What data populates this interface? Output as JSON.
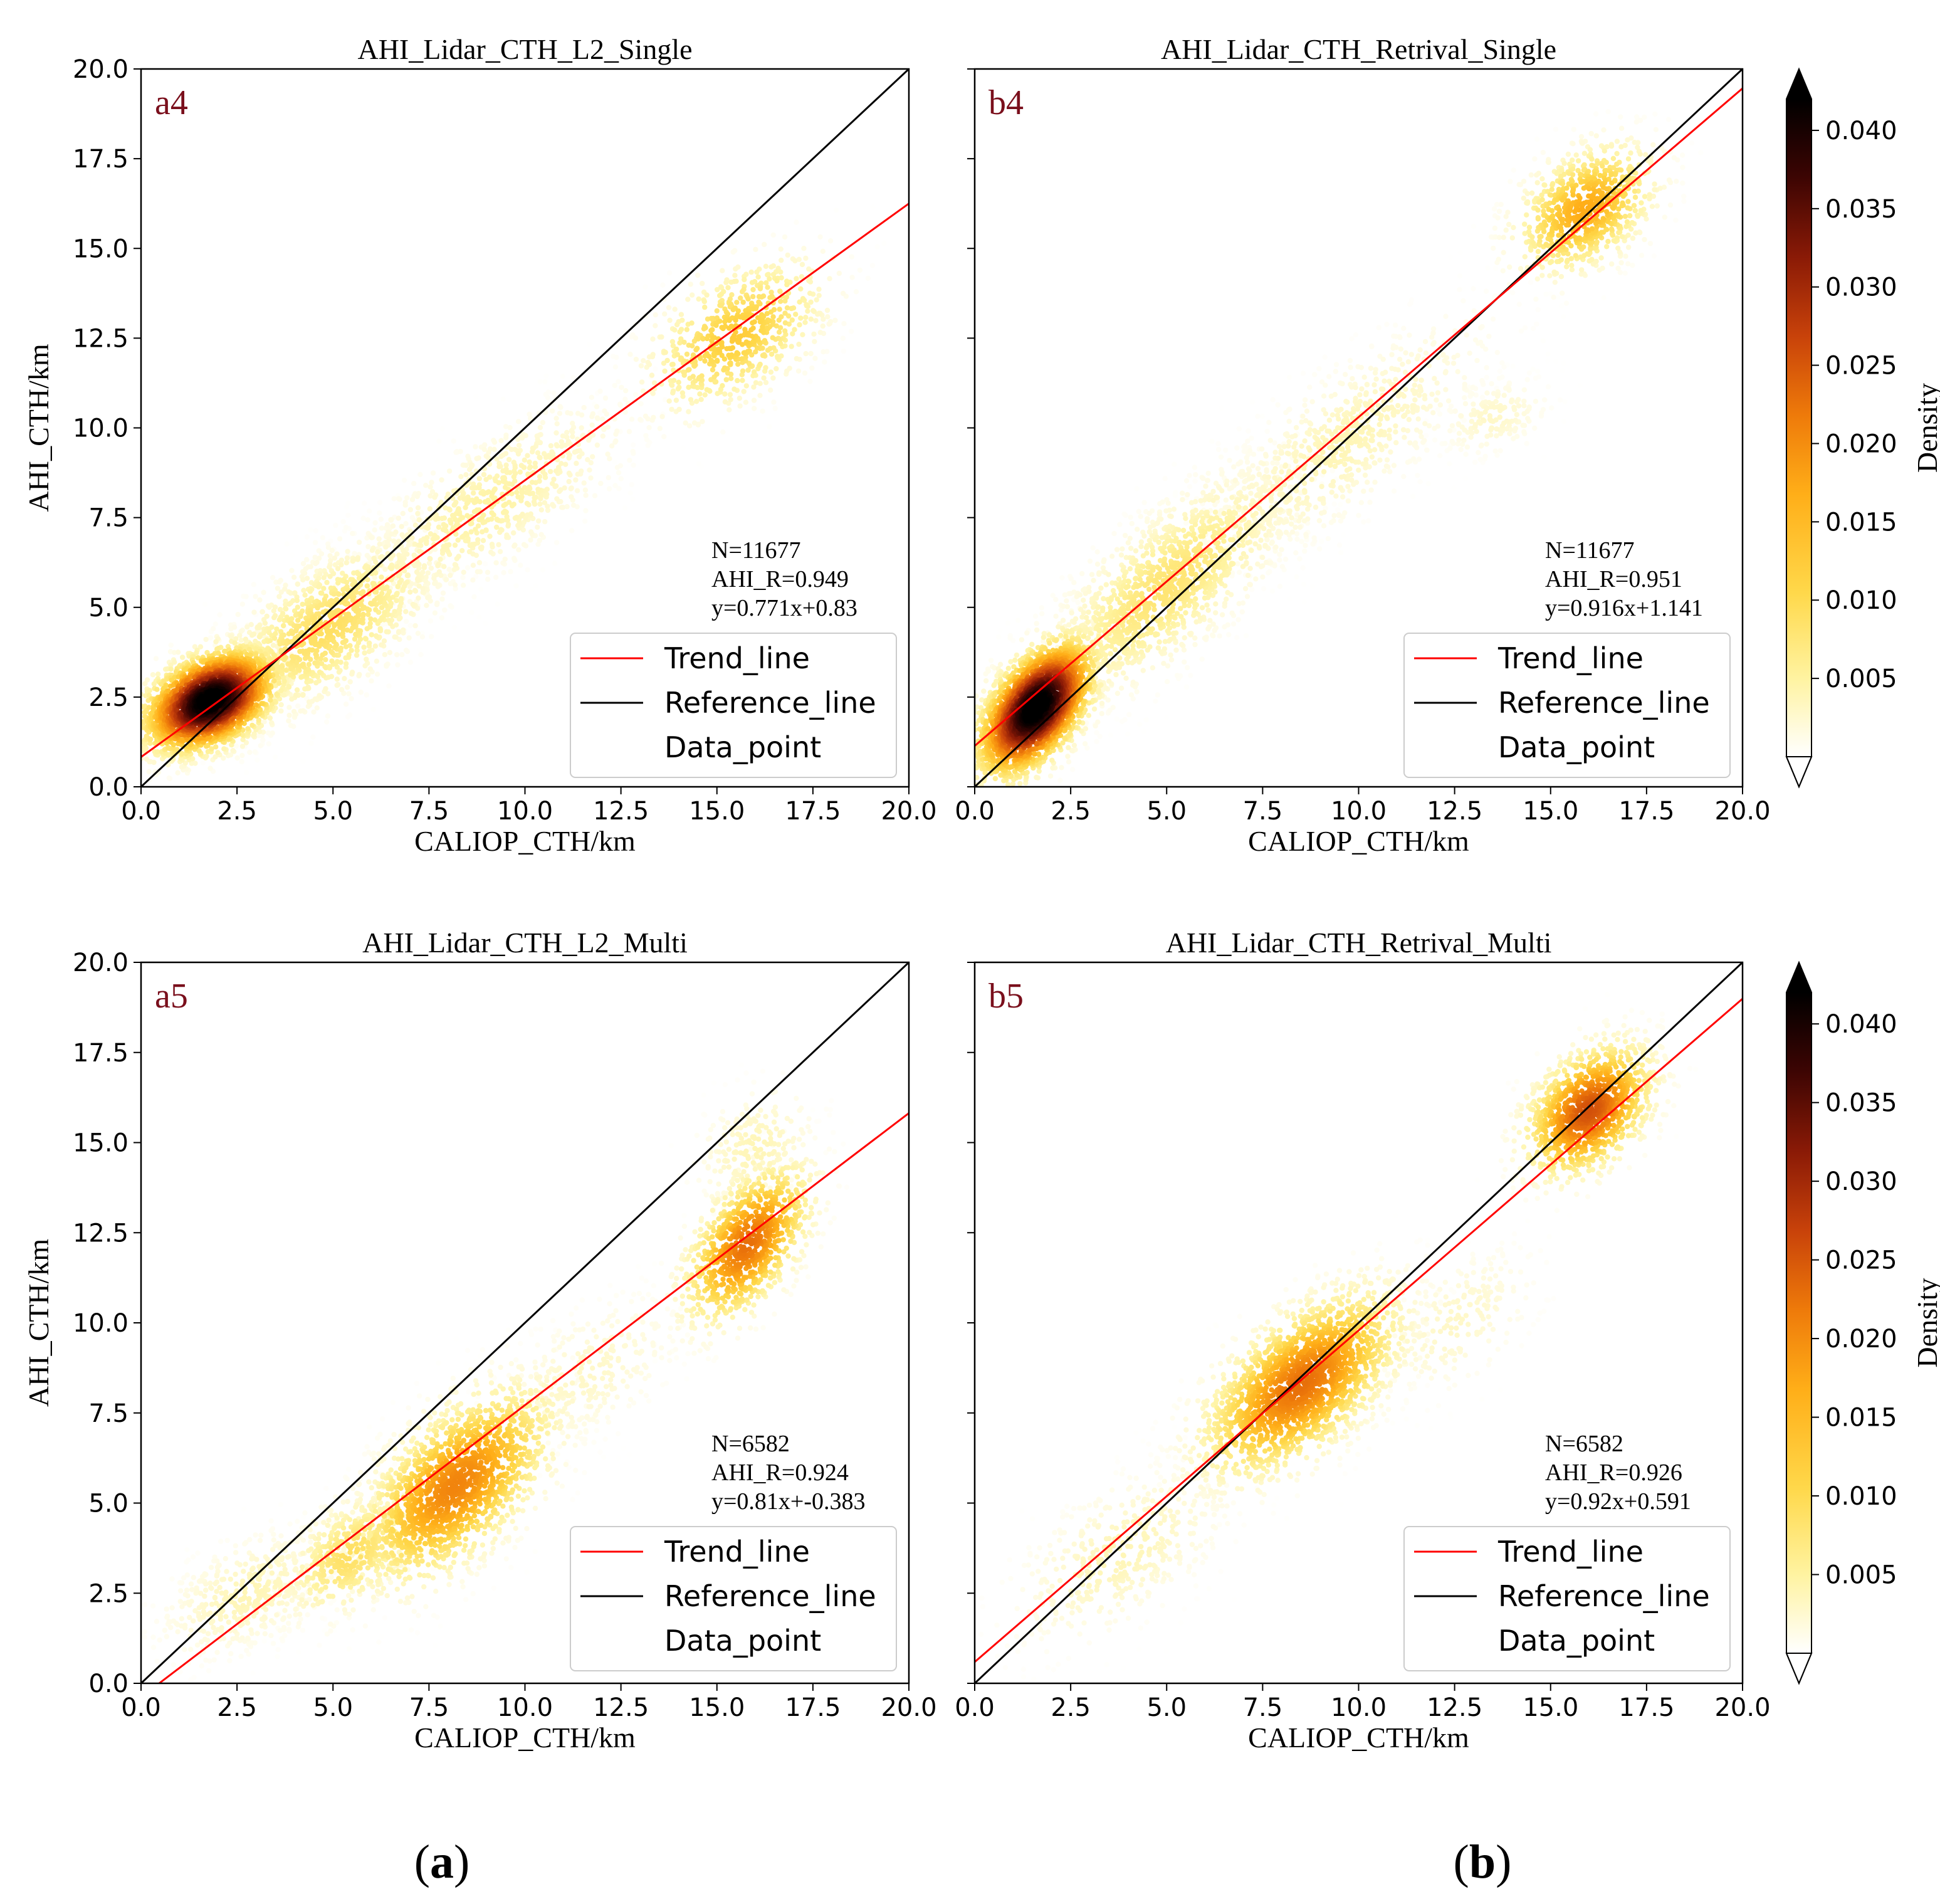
{
  "colors": {
    "trend": "#ff0000",
    "reference": "#000000",
    "panel_label": "#7a0f1c",
    "colormap": [
      "#ffffff",
      "#fff3a0",
      "#ffd84a",
      "#ffae18",
      "#ee7a0a",
      "#c8420a",
      "#8a1a06",
      "#3d0503",
      "#000000"
    ]
  },
  "chart_data": [
    {
      "id": "a4",
      "type": "scatter",
      "title": "AHI_Lidar_CTH_L2_Single",
      "xlabel": "CALIOP_CTH/km",
      "ylabel": "AHI_CTH/km",
      "xlim": [
        0,
        20
      ],
      "ylim": [
        0,
        20
      ],
      "xticks": [
        "0.0",
        "2.5",
        "5.0",
        "7.5",
        "10.0",
        "12.5",
        "15.0",
        "17.5",
        "20.0"
      ],
      "yticks": [
        "0.0",
        "2.5",
        "5.0",
        "7.5",
        "10.0",
        "12.5",
        "15.0",
        "17.5",
        "20.0"
      ],
      "show_yticks": true,
      "panel_label": "a4",
      "stats": [
        "N=11677",
        "AHI_R=0.949",
        "y=0.771x+0.83"
      ],
      "trend": {
        "slope": 0.771,
        "intercept": 0.83
      },
      "reference": {
        "slope": 1,
        "intercept": 0
      },
      "legend": [
        "Trend_line",
        "Reference_line",
        "Data_point"
      ],
      "clusters": [
        {
          "x": 1.8,
          "y": 2.4,
          "sx": 0.9,
          "sy": 0.75,
          "rho": 0.4,
          "n": 2600,
          "peak": 0.045
        },
        {
          "x": 4.8,
          "y": 4.4,
          "sx": 1.6,
          "sy": 1.4,
          "rho": 0.65,
          "n": 1300,
          "peak": 0.009
        },
        {
          "x": 9.0,
          "y": 7.8,
          "sx": 2.0,
          "sy": 1.6,
          "rho": 0.75,
          "n": 900,
          "peak": 0.005
        },
        {
          "x": 15.5,
          "y": 12.6,
          "sx": 1.3,
          "sy": 1.2,
          "rho": 0.5,
          "n": 700,
          "peak": 0.012
        }
      ]
    },
    {
      "id": "b4",
      "type": "scatter",
      "title": "AHI_Lidar_CTH_Retrival_Single",
      "xlabel": "CALIOP_CTH/km",
      "ylabel": "",
      "xlim": [
        0,
        20
      ],
      "ylim": [
        0,
        20
      ],
      "xticks": [
        "0.0",
        "2.5",
        "5.0",
        "7.5",
        "10.0",
        "12.5",
        "15.0",
        "17.5",
        "20.0"
      ],
      "yticks": [
        "0.0",
        "2.5",
        "5.0",
        "7.5",
        "10.0",
        "12.5",
        "15.0",
        "17.5",
        "20.0"
      ],
      "show_yticks": false,
      "panel_label": "b4",
      "stats": [
        "N=11677",
        "AHI_R=0.951",
        "y=0.916x+1.141"
      ],
      "trend": {
        "slope": 0.916,
        "intercept": 1.141
      },
      "reference": {
        "slope": 1,
        "intercept": 0
      },
      "legend": [
        "Trend_line",
        "Reference_line",
        "Data_point"
      ],
      "clusters": [
        {
          "x": 1.6,
          "y": 2.2,
          "sx": 0.8,
          "sy": 1.0,
          "rho": 0.55,
          "n": 2400,
          "peak": 0.045
        },
        {
          "x": 5.0,
          "y": 5.6,
          "sx": 1.8,
          "sy": 1.8,
          "rho": 0.75,
          "n": 1500,
          "peak": 0.008
        },
        {
          "x": 9.5,
          "y": 9.5,
          "sx": 2.2,
          "sy": 2.0,
          "rho": 0.8,
          "n": 900,
          "peak": 0.004
        },
        {
          "x": 13.5,
          "y": 10.3,
          "sx": 0.8,
          "sy": 0.6,
          "rho": 0.3,
          "n": 200,
          "peak": 0.003
        },
        {
          "x": 15.9,
          "y": 16.1,
          "sx": 1.0,
          "sy": 1.0,
          "rho": 0.4,
          "n": 800,
          "peak": 0.016
        }
      ]
    },
    {
      "id": "a5",
      "type": "scatter",
      "title": "AHI_Lidar_CTH_L2_Multi",
      "xlabel": "CALIOP_CTH/km",
      "ylabel": "AHI_CTH/km",
      "xlim": [
        0,
        20
      ],
      "ylim": [
        0,
        20
      ],
      "xticks": [
        "0.0",
        "2.5",
        "5.0",
        "7.5",
        "10.0",
        "12.5",
        "15.0",
        "17.5",
        "20.0"
      ],
      "yticks": [
        "0.0",
        "2.5",
        "5.0",
        "7.5",
        "10.0",
        "12.5",
        "15.0",
        "17.5",
        "20.0"
      ],
      "show_yticks": true,
      "panel_label": "a5",
      "stats": [
        "N=6582",
        "AHI_R=0.924",
        "y=0.81x+-0.383"
      ],
      "trend": {
        "slope": 0.81,
        "intercept": -0.383
      },
      "reference": {
        "slope": 1,
        "intercept": 0
      },
      "legend": [
        "Trend_line",
        "Reference_line",
        "Data_point"
      ],
      "clusters": [
        {
          "x": 2.8,
          "y": 2.5,
          "sx": 1.3,
          "sy": 1.0,
          "rho": 0.5,
          "n": 500,
          "peak": 0.004
        },
        {
          "x": 5.5,
          "y": 3.6,
          "sx": 1.0,
          "sy": 1.0,
          "rho": 0.5,
          "n": 500,
          "peak": 0.009
        },
        {
          "x": 8.2,
          "y": 5.5,
          "sx": 1.4,
          "sy": 1.5,
          "rho": 0.6,
          "n": 1700,
          "peak": 0.02
        },
        {
          "x": 11.5,
          "y": 8.5,
          "sx": 1.5,
          "sy": 1.3,
          "rho": 0.6,
          "n": 350,
          "peak": 0.003
        },
        {
          "x": 15.8,
          "y": 12.2,
          "sx": 0.9,
          "sy": 1.2,
          "rho": 0.55,
          "n": 900,
          "peak": 0.022
        },
        {
          "x": 16.0,
          "y": 14.8,
          "sx": 0.9,
          "sy": 1.0,
          "rho": 0.3,
          "n": 250,
          "peak": 0.004
        }
      ]
    },
    {
      "id": "b5",
      "type": "scatter",
      "title": "AHI_Lidar_CTH_Retrival_Multi",
      "xlabel": "CALIOP_CTH/km",
      "ylabel": "",
      "xlim": [
        0,
        20
      ],
      "ylim": [
        0,
        20
      ],
      "xticks": [
        "0.0",
        "2.5",
        "5.0",
        "7.5",
        "10.0",
        "12.5",
        "15.0",
        "17.5",
        "20.0"
      ],
      "yticks": [
        "0.0",
        "2.5",
        "5.0",
        "7.5",
        "10.0",
        "12.5",
        "15.0",
        "17.5",
        "20.0"
      ],
      "show_yticks": false,
      "panel_label": "b5",
      "stats": [
        "N=6582",
        "AHI_R=0.926",
        "y=0.92x+0.591"
      ],
      "trend": {
        "slope": 0.92,
        "intercept": 0.591
      },
      "reference": {
        "slope": 1,
        "intercept": 0
      },
      "legend": [
        "Trend_line",
        "Reference_line",
        "Data_point"
      ],
      "clusters": [
        {
          "x": 3.8,
          "y": 3.6,
          "sx": 1.6,
          "sy": 1.4,
          "rho": 0.6,
          "n": 500,
          "peak": 0.004
        },
        {
          "x": 8.5,
          "y": 8.3,
          "sx": 1.4,
          "sy": 1.4,
          "rho": 0.6,
          "n": 2000,
          "peak": 0.022
        },
        {
          "x": 12.5,
          "y": 10.0,
          "sx": 1.2,
          "sy": 1.2,
          "rho": 0.5,
          "n": 250,
          "peak": 0.003
        },
        {
          "x": 16.0,
          "y": 15.9,
          "sx": 0.9,
          "sy": 1.0,
          "rho": 0.4,
          "n": 1100,
          "peak": 0.025
        }
      ]
    }
  ],
  "colorbar": {
    "label": "Density",
    "min": 0.0,
    "max": 0.042,
    "ticks": [
      "0.040",
      "0.035",
      "0.030",
      "0.025",
      "0.020",
      "0.015",
      "0.010",
      "0.005"
    ]
  },
  "sublabels": {
    "a": "(a)",
    "a_letter": "a",
    "b": "(b)",
    "b_letter": "b"
  }
}
